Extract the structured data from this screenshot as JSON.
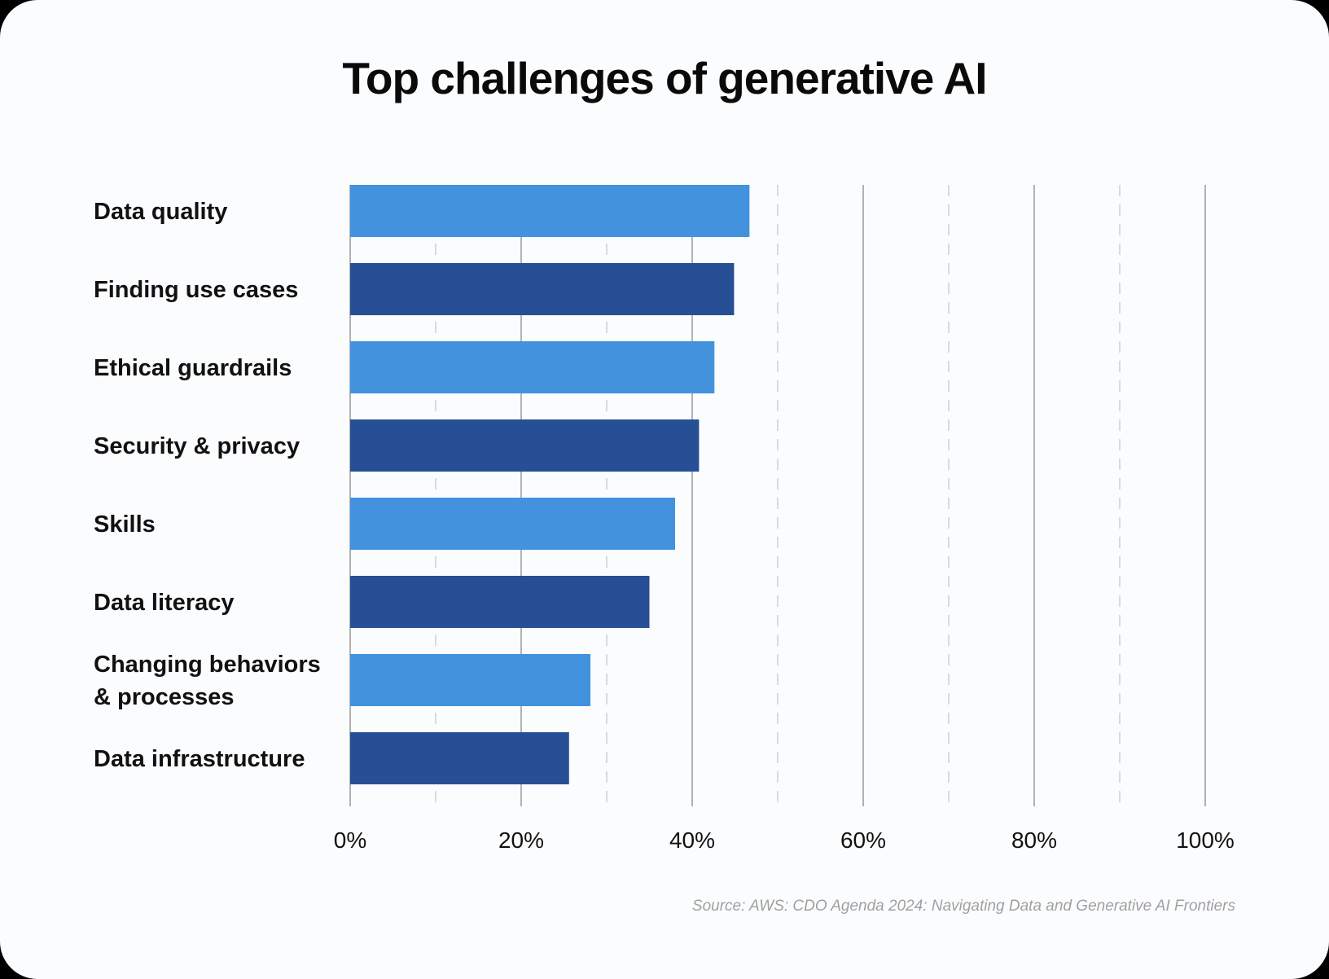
{
  "title": "Top challenges of generative AI",
  "source": "Source: AWS: CDO Agenda 2024: Navigating Data and Generative AI Frontiers",
  "colors": {
    "light_bar": "#4392dd",
    "dark_bar": "#274f96",
    "major_grid": "#9a9a9a",
    "minor_grid": "#cfcfcf"
  },
  "chart_data": {
    "type": "bar",
    "orientation": "horizontal",
    "categories": [
      "Data quality",
      "Finding use cases",
      "Ethical guardrails",
      "Security & privacy",
      "Skills",
      "Data literacy",
      "Changing behaviors & processes",
      "Data infrastructure"
    ],
    "category_lines": [
      [
        "Data quality"
      ],
      [
        "Finding use cases"
      ],
      [
        "Ethical guardrails"
      ],
      [
        "Security & privacy"
      ],
      [
        "Skills"
      ],
      [
        "Data literacy"
      ],
      [
        "Changing behaviors",
        "& processes"
      ],
      [
        "Data infrastructure"
      ]
    ],
    "values": [
      46.7,
      44.9,
      42.6,
      40.8,
      38.0,
      35.0,
      28.1,
      25.6
    ],
    "xlim": [
      0,
      100
    ],
    "major_ticks": [
      0,
      20,
      40,
      60,
      80,
      100
    ],
    "tick_labels": [
      "0%",
      "20%",
      "40%",
      "60%",
      "80%",
      "100%"
    ],
    "minor_ticks": [
      10,
      30,
      50,
      70,
      90
    ],
    "grid": true,
    "xlabel": "",
    "ylabel": ""
  }
}
